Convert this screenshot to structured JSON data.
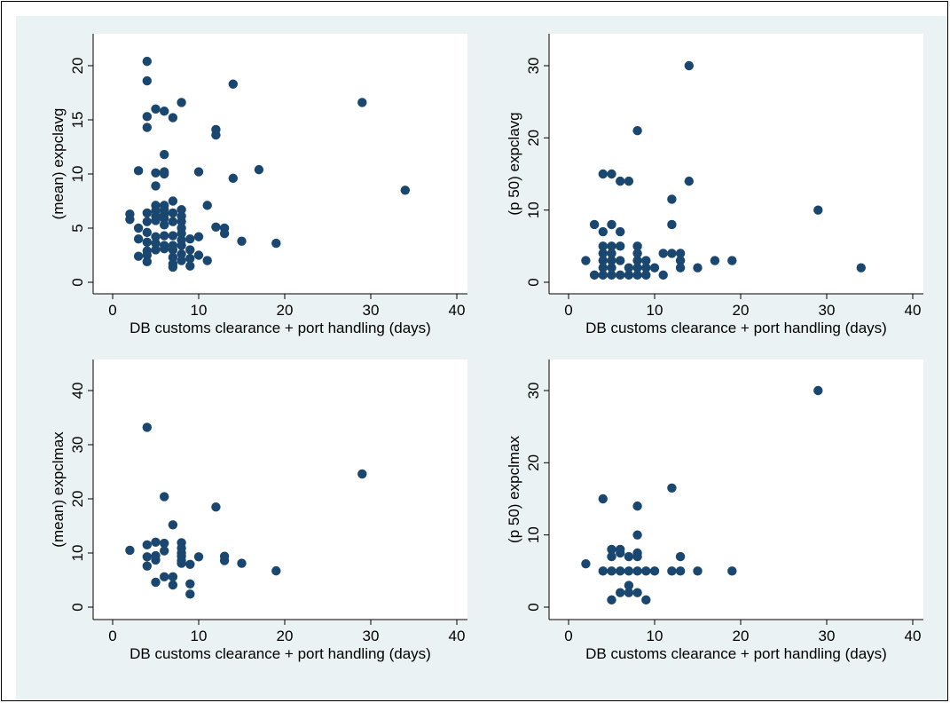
{
  "colors": {
    "graph_region": "#eaf2f3",
    "plot_region": "#ffffff",
    "marker": "#1a476f",
    "axis": "#000000"
  },
  "chart_data": [
    {
      "type": "scatter",
      "xlabel": "DB customs clearance + port handling (days)",
      "ylabel": "(mean) expclavg",
      "xlim": [
        0,
        40
      ],
      "ylim": [
        0,
        20
      ],
      "xticks": [
        0,
        10,
        20,
        30,
        40
      ],
      "yticks": [
        0,
        5,
        10,
        15,
        20
      ],
      "grid": false,
      "points": [
        [
          2,
          6.3
        ],
        [
          2,
          5.8
        ],
        [
          3,
          10.3
        ],
        [
          3,
          5.0
        ],
        [
          3,
          4.0
        ],
        [
          3,
          2.4
        ],
        [
          4,
          20.4
        ],
        [
          4,
          18.6
        ],
        [
          4,
          15.3
        ],
        [
          4,
          14.3
        ],
        [
          4,
          6.4
        ],
        [
          4,
          5.6
        ],
        [
          4,
          4.6
        ],
        [
          4,
          3.7
        ],
        [
          4,
          2.9
        ],
        [
          4,
          2.5
        ],
        [
          4,
          1.9
        ],
        [
          5,
          16.0
        ],
        [
          5,
          10.1
        ],
        [
          5,
          8.9
        ],
        [
          5,
          7.1
        ],
        [
          5,
          6.6
        ],
        [
          5,
          6.1
        ],
        [
          5,
          5.7
        ],
        [
          5,
          4.2
        ],
        [
          5,
          3.6
        ],
        [
          5,
          3.0
        ],
        [
          6,
          15.8
        ],
        [
          6,
          11.8
        ],
        [
          6,
          10.2
        ],
        [
          6,
          10.0
        ],
        [
          6,
          7.1
        ],
        [
          6,
          6.7
        ],
        [
          6,
          6.3
        ],
        [
          6,
          5.9
        ],
        [
          6,
          5.3
        ],
        [
          6,
          4.3
        ],
        [
          6,
          3.4
        ],
        [
          6,
          3.1
        ],
        [
          7,
          15.2
        ],
        [
          7,
          7.5
        ],
        [
          7,
          6.4
        ],
        [
          7,
          5.6
        ],
        [
          7,
          4.3
        ],
        [
          7,
          3.4
        ],
        [
          7,
          3.0
        ],
        [
          7,
          2.3
        ],
        [
          7,
          1.7
        ],
        [
          7,
          1.4
        ],
        [
          8,
          16.6
        ],
        [
          8,
          6.7
        ],
        [
          8,
          6.1
        ],
        [
          8,
          5.6
        ],
        [
          8,
          5.0
        ],
        [
          8,
          4.5
        ],
        [
          8,
          3.9
        ],
        [
          8,
          3.4
        ],
        [
          8,
          2.6
        ],
        [
          8,
          2.0
        ],
        [
          9,
          4.0
        ],
        [
          9,
          3.0
        ],
        [
          9,
          2.2
        ],
        [
          9,
          1.5
        ],
        [
          10,
          10.2
        ],
        [
          10,
          4.2
        ],
        [
          10,
          2.5
        ],
        [
          11,
          7.1
        ],
        [
          11,
          2.0
        ],
        [
          12,
          14.1
        ],
        [
          12,
          13.6
        ],
        [
          12,
          5.1
        ],
        [
          13,
          5.0
        ],
        [
          13,
          4.5
        ],
        [
          14,
          18.3
        ],
        [
          14,
          9.6
        ],
        [
          15,
          3.8
        ],
        [
          17,
          10.4
        ],
        [
          19,
          3.6
        ],
        [
          29,
          16.6
        ],
        [
          34,
          8.5
        ]
      ]
    },
    {
      "type": "scatter",
      "xlabel": "DB customs clearance + port handling (days)",
      "ylabel": "(p 50) expclavg",
      "xlim": [
        0,
        40
      ],
      "ylim": [
        0,
        30
      ],
      "xticks": [
        0,
        10,
        20,
        30,
        40
      ],
      "yticks": [
        0,
        10,
        20,
        30
      ],
      "grid": false,
      "points": [
        [
          2,
          3
        ],
        [
          3,
          8
        ],
        [
          3,
          1
        ],
        [
          4,
          7
        ],
        [
          4,
          5
        ],
        [
          4,
          4
        ],
        [
          4,
          3
        ],
        [
          4,
          2
        ],
        [
          4,
          1
        ],
        [
          4,
          15
        ],
        [
          5,
          15
        ],
        [
          5,
          8
        ],
        [
          5,
          5
        ],
        [
          5,
          4
        ],
        [
          5,
          3
        ],
        [
          5,
          2
        ],
        [
          5,
          1
        ],
        [
          6,
          14
        ],
        [
          6,
          7
        ],
        [
          6,
          5
        ],
        [
          6,
          3
        ],
        [
          6,
          1
        ],
        [
          7,
          14
        ],
        [
          7,
          2
        ],
        [
          7,
          1
        ],
        [
          8,
          21
        ],
        [
          8,
          5
        ],
        [
          8,
          4
        ],
        [
          8,
          3
        ],
        [
          8,
          2
        ],
        [
          8,
          1
        ],
        [
          9,
          3
        ],
        [
          9,
          2
        ],
        [
          9,
          1
        ],
        [
          10,
          2
        ],
        [
          11,
          4
        ],
        [
          11,
          1
        ],
        [
          12,
          11.5
        ],
        [
          12,
          8
        ],
        [
          12,
          4
        ],
        [
          13,
          4
        ],
        [
          13,
          3
        ],
        [
          13,
          2
        ],
        [
          14,
          30
        ],
        [
          14,
          14
        ],
        [
          15,
          2
        ],
        [
          17,
          3
        ],
        [
          19,
          3
        ],
        [
          29,
          10
        ],
        [
          34,
          2
        ]
      ]
    },
    {
      "type": "scatter",
      "xlabel": "DB customs clearance + port handling (days)",
      "ylabel": "(mean) expclmax",
      "xlim": [
        0,
        40
      ],
      "ylim": [
        0,
        40
      ],
      "xticks": [
        0,
        10,
        20,
        30,
        40
      ],
      "yticks": [
        0,
        10,
        20,
        30,
        40
      ],
      "grid": false,
      "points": [
        [
          2,
          10.5
        ],
        [
          4,
          33.2
        ],
        [
          4,
          11.5
        ],
        [
          4,
          9.3
        ],
        [
          4,
          7.6
        ],
        [
          5,
          12.0
        ],
        [
          5,
          9.5
        ],
        [
          5,
          8.7
        ],
        [
          5,
          4.6
        ],
        [
          6,
          20.4
        ],
        [
          6,
          11.8
        ],
        [
          6,
          10.4
        ],
        [
          6,
          5.6
        ],
        [
          7,
          15.2
        ],
        [
          7,
          5.6
        ],
        [
          7,
          4.1
        ],
        [
          8,
          11.9
        ],
        [
          8,
          10.9
        ],
        [
          8,
          10.0
        ],
        [
          8,
          9.4
        ],
        [
          8,
          8.6
        ],
        [
          8,
          8.1
        ],
        [
          9,
          7.9
        ],
        [
          9,
          4.3
        ],
        [
          9,
          2.4
        ],
        [
          10,
          9.3
        ],
        [
          12,
          18.5
        ],
        [
          13,
          9.4
        ],
        [
          13,
          8.6
        ],
        [
          15,
          8.1
        ],
        [
          19,
          6.7
        ],
        [
          29,
          24.6
        ]
      ]
    },
    {
      "type": "scatter",
      "xlabel": "DB customs clearance + port handling (days)",
      "ylabel": "(p 50) expclmax",
      "xlim": [
        0,
        40
      ],
      "ylim": [
        0,
        30
      ],
      "xticks": [
        0,
        10,
        20,
        30,
        40
      ],
      "yticks": [
        0,
        10,
        20,
        30
      ],
      "grid": false,
      "points": [
        [
          2,
          6
        ],
        [
          4,
          15
        ],
        [
          4,
          5
        ],
        [
          5,
          8
        ],
        [
          5,
          7
        ],
        [
          5,
          5
        ],
        [
          5,
          1
        ],
        [
          6,
          8
        ],
        [
          6,
          7.5
        ],
        [
          6,
          5
        ],
        [
          6,
          2
        ],
        [
          7,
          7
        ],
        [
          7,
          3
        ],
        [
          7,
          2
        ],
        [
          7,
          5
        ],
        [
          8,
          14
        ],
        [
          8,
          10
        ],
        [
          8,
          7.5
        ],
        [
          8,
          7
        ],
        [
          8,
          5
        ],
        [
          8,
          2
        ],
        [
          9,
          5
        ],
        [
          9,
          1
        ],
        [
          10,
          5
        ],
        [
          12,
          16.5
        ],
        [
          12,
          5
        ],
        [
          13,
          7
        ],
        [
          13,
          5
        ],
        [
          15,
          5
        ],
        [
          19,
          5
        ],
        [
          29,
          30
        ]
      ]
    }
  ]
}
